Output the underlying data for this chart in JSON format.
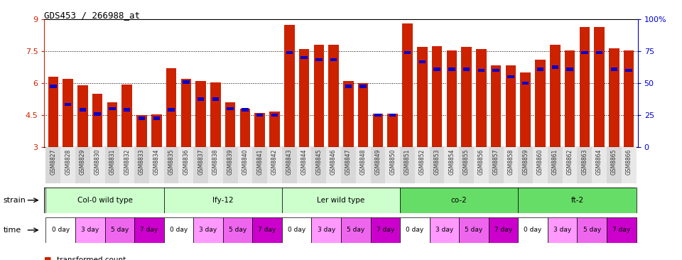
{
  "title": "GDS453 / 266988_at",
  "samples": [
    "GSM8827",
    "GSM8828",
    "GSM8829",
    "GSM8830",
    "GSM8831",
    "GSM8832",
    "GSM8833",
    "GSM8834",
    "GSM8835",
    "GSM8836",
    "GSM8837",
    "GSM8838",
    "GSM8839",
    "GSM8840",
    "GSM8841",
    "GSM8842",
    "GSM8843",
    "GSM8844",
    "GSM8845",
    "GSM8846",
    "GSM8847",
    "GSM8848",
    "GSM8849",
    "GSM8850",
    "GSM8851",
    "GSM8852",
    "GSM8853",
    "GSM8854",
    "GSM8855",
    "GSM8856",
    "GSM8857",
    "GSM8858",
    "GSM8859",
    "GSM8860",
    "GSM8861",
    "GSM8862",
    "GSM8863",
    "GSM8864",
    "GSM8865",
    "GSM8866"
  ],
  "red_values": [
    6.3,
    6.2,
    5.9,
    5.5,
    5.1,
    5.95,
    4.5,
    4.52,
    6.7,
    6.2,
    6.1,
    6.05,
    5.1,
    4.8,
    4.6,
    4.65,
    8.75,
    7.6,
    7.8,
    7.8,
    6.1,
    6.0,
    4.55,
    4.55,
    8.8,
    7.7,
    7.75,
    7.55,
    7.7,
    7.6,
    6.85,
    6.85,
    6.5,
    7.1,
    7.8,
    7.55,
    8.65,
    8.65,
    7.65,
    7.55
  ],
  "blue_values": [
    5.85,
    5.0,
    4.75,
    4.55,
    4.8,
    4.75,
    4.35,
    4.35,
    4.75,
    6.05,
    5.25,
    5.25,
    4.8,
    4.75,
    4.5,
    4.5,
    7.45,
    7.2,
    7.1,
    7.1,
    5.85,
    5.85,
    4.5,
    4.5,
    7.45,
    7.0,
    6.65,
    6.65,
    6.65,
    6.6,
    6.6,
    6.3,
    6.0,
    6.65,
    6.75,
    6.65,
    7.45,
    7.45,
    6.65,
    6.6
  ],
  "strains": [
    {
      "label": "Col-0 wild type",
      "start": 0,
      "end": 8,
      "color": "#ccffcc"
    },
    {
      "label": "lfy-12",
      "start": 8,
      "end": 16,
      "color": "#ccffcc"
    },
    {
      "label": "Ler wild type",
      "start": 16,
      "end": 24,
      "color": "#ccffcc"
    },
    {
      "label": "co-2",
      "start": 24,
      "end": 32,
      "color": "#66dd66"
    },
    {
      "label": "ft-2",
      "start": 32,
      "end": 40,
      "color": "#66dd66"
    }
  ],
  "time_labels": [
    "0 day",
    "3 day",
    "5 day",
    "7 day"
  ],
  "time_colors": [
    "#ffffff",
    "#ff99ff",
    "#ee66ee",
    "#cc00cc"
  ],
  "ylim": [
    3,
    9
  ],
  "yticks": [
    3,
    4.5,
    6,
    7.5,
    9
  ],
  "ytick_labels": [
    "3",
    "4.5",
    "6",
    "7.5",
    "9"
  ],
  "right_yticks": [
    0,
    25,
    50,
    75,
    100
  ],
  "right_ytick_labels": [
    "0",
    "25",
    "50",
    "75",
    "100%"
  ],
  "dotted_lines": [
    4.5,
    6.0,
    7.5
  ],
  "bar_color": "#cc2200",
  "blue_color": "#0000cc",
  "bar_width": 0.7,
  "title_fontsize": 9,
  "tick_label_fontsize": 6,
  "label_fontsize": 8
}
